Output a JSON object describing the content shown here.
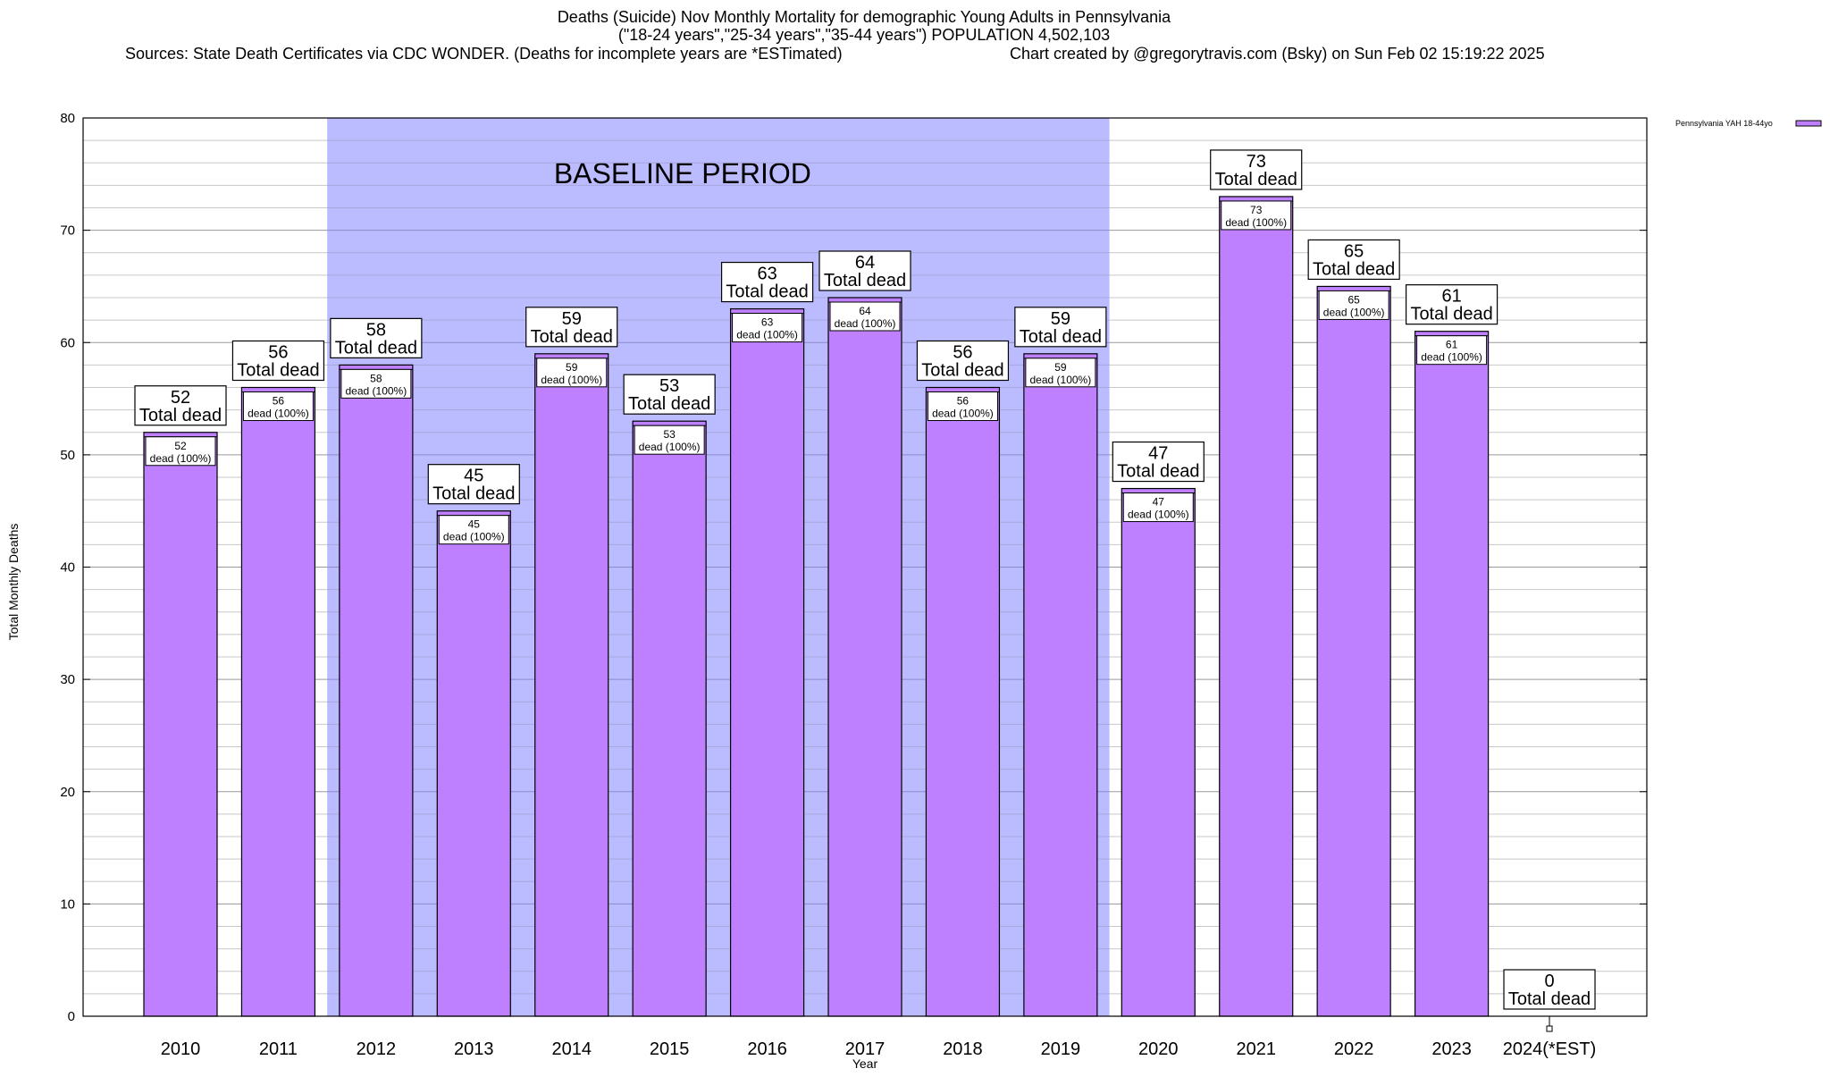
{
  "colors": {
    "bar_fill": "#bf80ff",
    "bar_stroke": "#000000",
    "baseline_band": "#bbbbff",
    "grid": "#a0a0a0",
    "background": "#ffffff"
  },
  "chart_data": {
    "type": "bar",
    "title_lines": [
      "Deaths (Suicide) Nov Monthly Mortality for demographic Young Adults in Pennsylvania",
      "(\"18-24 years\",\"25-34 years\",\"35-44 years\") POPULATION 4,502,103"
    ],
    "source_text": "Sources: State Death Certificates via CDC WONDER. (Deaths for incomplete years are *ESTimated)",
    "credit_text": "Chart created by @gregorytravis.com (Bsky) on Sun Feb 02 15:19:22 2025",
    "xlabel": "Year",
    "ylabel": "Total Monthly Deaths",
    "ylim": [
      0,
      80
    ],
    "yticks": [
      0,
      10,
      20,
      30,
      40,
      50,
      60,
      70,
      80
    ],
    "grid": true,
    "legend_position": "top-right",
    "series": [
      {
        "name": "Pennsylvania YAH 18-44yo",
        "values": [
          52,
          56,
          58,
          45,
          59,
          53,
          63,
          64,
          56,
          59,
          47,
          73,
          65,
          61,
          0
        ]
      }
    ],
    "categories": [
      "2010",
      "2011",
      "2012",
      "2013",
      "2014",
      "2015",
      "2016",
      "2017",
      "2018",
      "2019",
      "2020",
      "2021",
      "2022",
      "2023",
      "2024(*EST)"
    ],
    "baseline": {
      "label": "BASELINE PERIOD",
      "start_year": "2012",
      "end_year": "2019"
    },
    "total_label": "Total dead",
    "inner_label_word": "dead",
    "inner_label_pct": "(100%)"
  }
}
